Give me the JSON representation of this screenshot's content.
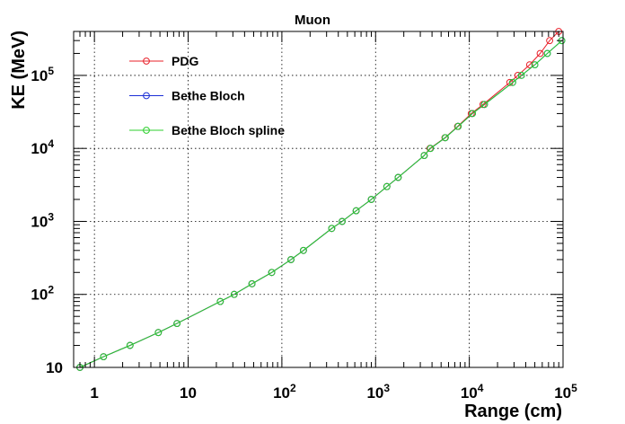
{
  "chart_data": {
    "type": "line",
    "title": "Muon",
    "xlabel": "Range (cm)",
    "ylabel": "KE (MeV)",
    "xscale": "log",
    "yscale": "log",
    "xlim": [
      0.6,
      100000
    ],
    "ylim": [
      10,
      400000
    ],
    "grid": true,
    "legend_position": "top-left",
    "x_ticks": [
      {
        "value": 1,
        "label": "1"
      },
      {
        "value": 10,
        "label": "10"
      },
      {
        "value": 100,
        "base": "10",
        "exp": "2"
      },
      {
        "value": 1000,
        "base": "10",
        "exp": "3"
      },
      {
        "value": 10000,
        "base": "10",
        "exp": "4"
      },
      {
        "value": 100000,
        "base": "10",
        "exp": "5"
      }
    ],
    "y_ticks": [
      {
        "value": 10,
        "label": "10"
      },
      {
        "value": 100,
        "base": "10",
        "exp": "2"
      },
      {
        "value": 1000,
        "base": "10",
        "exp": "3"
      },
      {
        "value": 10000,
        "base": "10",
        "exp": "4"
      },
      {
        "value": 100000,
        "base": "10",
        "exp": "5"
      }
    ],
    "series": [
      {
        "name": "PDG",
        "color": "#e8202a",
        "points": [
          [
            0.7,
            10
          ],
          [
            1.25,
            14
          ],
          [
            2.4,
            20
          ],
          [
            4.8,
            30
          ],
          [
            7.6,
            40
          ],
          [
            22,
            80
          ],
          [
            31,
            100
          ],
          [
            48,
            140
          ],
          [
            78,
            200
          ],
          [
            125,
            300
          ],
          [
            170,
            400
          ],
          [
            340,
            800
          ],
          [
            440,
            1000
          ],
          [
            620,
            1400
          ],
          [
            900,
            2000
          ],
          [
            1320,
            3000
          ],
          [
            1740,
            4000
          ],
          [
            3300,
            8000
          ],
          [
            3800,
            10000
          ],
          [
            5500,
            14000
          ],
          [
            7500,
            20000
          ],
          [
            10500,
            30000
          ],
          [
            14000,
            40000
          ],
          [
            27000,
            80000
          ],
          [
            33000,
            100000
          ],
          [
            44000,
            140000
          ],
          [
            57000,
            200000
          ],
          [
            72000,
            300000
          ],
          [
            90000,
            400000
          ]
        ]
      },
      {
        "name": "Bethe Bloch",
        "color": "#1c2fd6",
        "points": [
          [
            0.7,
            10
          ],
          [
            1.25,
            14
          ],
          [
            2.4,
            20
          ],
          [
            4.8,
            30
          ],
          [
            7.6,
            40
          ],
          [
            22,
            80
          ],
          [
            31,
            100
          ],
          [
            48,
            140
          ],
          [
            78,
            200
          ],
          [
            125,
            300
          ],
          [
            170,
            400
          ],
          [
            340,
            800
          ],
          [
            440,
            1000
          ],
          [
            620,
            1400
          ],
          [
            900,
            2000
          ],
          [
            1320,
            3000
          ],
          [
            1740,
            4000
          ],
          [
            3300,
            8000
          ],
          [
            3850,
            10000
          ],
          [
            5550,
            14000
          ],
          [
            7600,
            20000
          ],
          [
            10800,
            30000
          ],
          [
            14500,
            40000
          ],
          [
            29000,
            80000
          ],
          [
            36000,
            100000
          ],
          [
            50000,
            140000
          ],
          [
            68000,
            200000
          ],
          [
            97000,
            300000
          ]
        ]
      },
      {
        "name": "Bethe Bloch spline",
        "color": "#2ccf2c",
        "points": [
          [
            0.7,
            10
          ],
          [
            1.25,
            14
          ],
          [
            2.4,
            20
          ],
          [
            4.8,
            30
          ],
          [
            7.6,
            40
          ],
          [
            22,
            80
          ],
          [
            31,
            100
          ],
          [
            48,
            140
          ],
          [
            78,
            200
          ],
          [
            125,
            300
          ],
          [
            170,
            400
          ],
          [
            340,
            800
          ],
          [
            440,
            1000
          ],
          [
            620,
            1400
          ],
          [
            900,
            2000
          ],
          [
            1320,
            3000
          ],
          [
            1740,
            4000
          ],
          [
            3300,
            8000
          ],
          [
            3850,
            10000
          ],
          [
            5550,
            14000
          ],
          [
            7600,
            20000
          ],
          [
            10800,
            30000
          ],
          [
            14500,
            40000
          ],
          [
            29000,
            80000
          ],
          [
            36000,
            100000
          ],
          [
            50000,
            140000
          ],
          [
            68000,
            200000
          ],
          [
            97000,
            300000
          ]
        ]
      }
    ]
  }
}
